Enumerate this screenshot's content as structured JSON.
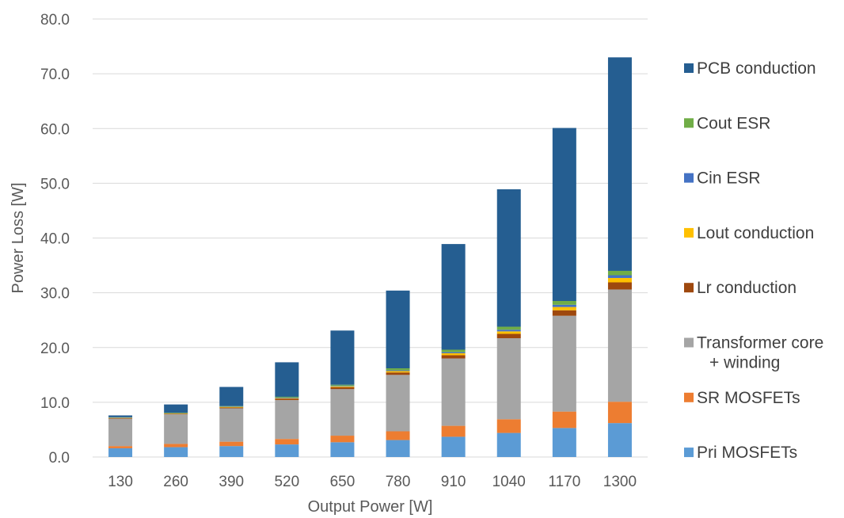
{
  "chart_data": {
    "type": "bar",
    "stacked": true,
    "title": "",
    "xlabel": "Output Power  [W]",
    "ylabel": "Power Loss [W]",
    "ylim": [
      0,
      80
    ],
    "yticks": [
      "0.0",
      "10.0",
      "20.0",
      "30.0",
      "40.0",
      "50.0",
      "60.0",
      "70.0",
      "80.0"
    ],
    "ytick_values": [
      0,
      10,
      20,
      30,
      40,
      50,
      60,
      70,
      80
    ],
    "grid": true,
    "legend_position": "right",
    "categories": [
      "130",
      "260",
      "390",
      "520",
      "650",
      "780",
      "910",
      "1040",
      "1170",
      "1300"
    ],
    "series": [
      {
        "name": "Pri MOSFETs",
        "color": "#5b9bd5",
        "values": [
          1.6,
          1.8,
          2.0,
          2.3,
          2.7,
          3.1,
          3.7,
          4.4,
          5.3,
          6.2
        ]
      },
      {
        "name": "SR MOSFETs",
        "color": "#ed7d31",
        "values": [
          0.4,
          0.6,
          0.8,
          1.0,
          1.2,
          1.6,
          2.0,
          2.5,
          3.0,
          3.9
        ]
      },
      {
        "name": "Transformer core + winding",
        "color": "#a5a5a5",
        "values": [
          5.0,
          5.4,
          6.1,
          7.1,
          8.5,
          10.3,
          12.3,
          14.8,
          17.5,
          20.5
        ]
      },
      {
        "name": "Lr conduction",
        "color": "#9e480e",
        "values": [
          0.1,
          0.1,
          0.15,
          0.25,
          0.35,
          0.45,
          0.6,
          0.8,
          1.0,
          1.3
        ]
      },
      {
        "name": "Lout conduction",
        "color": "#ffc000",
        "values": [
          0.05,
          0.05,
          0.1,
          0.1,
          0.15,
          0.25,
          0.35,
          0.45,
          0.6,
          0.8
        ]
      },
      {
        "name": "Cin ESR",
        "color": "#4472c4",
        "values": [
          0.05,
          0.05,
          0.05,
          0.1,
          0.1,
          0.15,
          0.2,
          0.3,
          0.4,
          0.5
        ]
      },
      {
        "name": "Cout ESR",
        "color": "#70ad47",
        "values": [
          0.05,
          0.1,
          0.1,
          0.15,
          0.2,
          0.35,
          0.45,
          0.55,
          0.7,
          0.8
        ]
      },
      {
        "name": "PCB conduction",
        "color": "#255e91",
        "values": [
          0.35,
          1.5,
          3.5,
          6.3,
          9.9,
          14.2,
          19.3,
          25.1,
          31.6,
          39.0
        ]
      }
    ],
    "legend": [
      {
        "label_lines": [
          "PCB conduction"
        ],
        "color": "#255e91"
      },
      {
        "label_lines": [
          "Cout ESR"
        ],
        "color": "#70ad47"
      },
      {
        "label_lines": [
          "Cin ESR"
        ],
        "color": "#4472c4"
      },
      {
        "label_lines": [
          "Lout conduction"
        ],
        "color": "#ffc000"
      },
      {
        "label_lines": [
          "Lr conduction"
        ],
        "color": "#9e480e"
      },
      {
        "label_lines": [
          "Transformer core",
          "+ winding"
        ],
        "color": "#a5a5a5"
      },
      {
        "label_lines": [
          "SR MOSFETs"
        ],
        "color": "#ed7d31"
      },
      {
        "label_lines": [
          "Pri MOSFETs"
        ],
        "color": "#5b9bd5"
      }
    ]
  }
}
